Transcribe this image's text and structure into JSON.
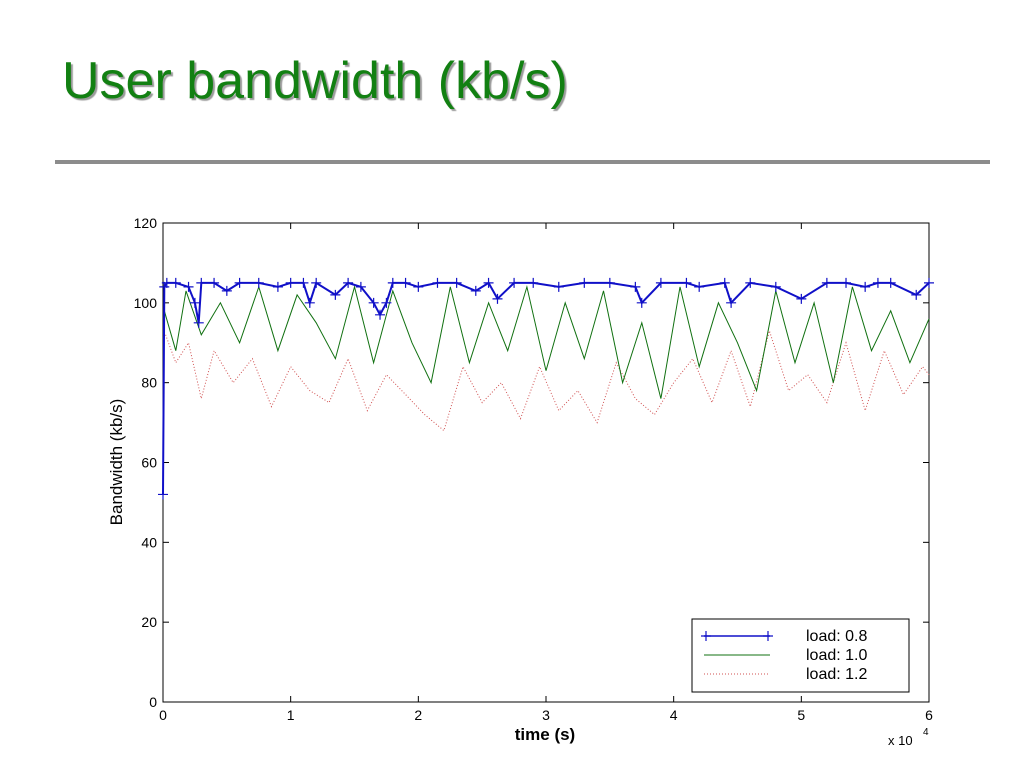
{
  "slide": {
    "title": "User bandwidth (kb/s)"
  },
  "colors": {
    "title": "#128012",
    "rule": "#8c8c8c",
    "series_load_08": "#1010c8",
    "series_load_10": "#107010",
    "series_load_12": "#d05050"
  },
  "chart_data": {
    "type": "line",
    "title": "",
    "xlabel": "time (s)",
    "ylabel": "Bandwidth (kb/s)",
    "x_multiplier": "x 10",
    "x_multiplier_exp": "4",
    "xlim": [
      0,
      6
    ],
    "ylim": [
      0,
      120
    ],
    "x_ticks": [
      0,
      1,
      2,
      3,
      4,
      5,
      6
    ],
    "y_ticks": [
      0,
      20,
      40,
      60,
      80,
      100,
      120
    ],
    "grid": false,
    "legend_position": "bottom-right",
    "series": [
      {
        "name": "load: 0.8",
        "style": "solid-plus-markers",
        "x": [
          0,
          0.01,
          0.03,
          0.1,
          0.2,
          0.25,
          0.28,
          0.3,
          0.4,
          0.5,
          0.6,
          0.75,
          0.9,
          1.0,
          1.1,
          1.15,
          1.2,
          1.35,
          1.45,
          1.55,
          1.65,
          1.7,
          1.75,
          1.8,
          1.9,
          2.0,
          2.15,
          2.3,
          2.45,
          2.55,
          2.62,
          2.75,
          2.9,
          3.1,
          3.3,
          3.5,
          3.7,
          3.75,
          3.9,
          4.1,
          4.2,
          4.4,
          4.45,
          4.6,
          4.8,
          5.0,
          5.2,
          5.35,
          5.5,
          5.6,
          5.7,
          5.9,
          6.0
        ],
        "y": [
          52,
          104,
          105,
          105,
          104,
          100,
          95,
          105,
          105,
          103,
          105,
          105,
          104,
          105,
          105,
          100,
          105,
          102,
          105,
          104,
          100,
          97,
          100,
          105,
          105,
          104,
          105,
          105,
          103,
          105,
          101,
          105,
          105,
          104,
          105,
          105,
          104,
          100,
          105,
          105,
          104,
          105,
          100,
          105,
          104,
          101,
          105,
          105,
          104,
          105,
          105,
          102,
          105
        ]
      },
      {
        "name": "load: 1.0",
        "style": "solid",
        "x": [
          0.01,
          0.1,
          0.18,
          0.3,
          0.45,
          0.6,
          0.75,
          0.9,
          1.05,
          1.2,
          1.35,
          1.5,
          1.65,
          1.8,
          1.95,
          2.1,
          2.25,
          2.4,
          2.55,
          2.7,
          2.85,
          3.0,
          3.15,
          3.3,
          3.45,
          3.6,
          3.75,
          3.9,
          4.05,
          4.2,
          4.35,
          4.5,
          4.65,
          4.8,
          4.95,
          5.1,
          5.25,
          5.4,
          5.55,
          5.7,
          5.85,
          6.0
        ],
        "y": [
          98,
          88,
          103,
          92,
          100,
          90,
          104,
          88,
          102,
          95,
          86,
          104,
          85,
          103,
          90,
          80,
          104,
          85,
          100,
          88,
          104,
          83,
          100,
          86,
          103,
          80,
          95,
          76,
          104,
          84,
          100,
          90,
          78,
          103,
          85,
          100,
          80,
          104,
          88,
          98,
          85,
          96
        ]
      },
      {
        "name": "load: 1.2",
        "style": "dotted",
        "x": [
          0.02,
          0.1,
          0.2,
          0.3,
          0.4,
          0.55,
          0.7,
          0.85,
          1.0,
          1.15,
          1.3,
          1.45,
          1.6,
          1.75,
          1.9,
          2.05,
          2.2,
          2.35,
          2.5,
          2.65,
          2.8,
          2.95,
          3.1,
          3.25,
          3.4,
          3.55,
          3.7,
          3.85,
          4.0,
          4.15,
          4.3,
          4.45,
          4.6,
          4.75,
          4.9,
          5.05,
          5.2,
          5.35,
          5.5,
          5.65,
          5.8,
          5.95,
          6.0
        ],
        "y": [
          92,
          85,
          90,
          76,
          88,
          80,
          86,
          74,
          84,
          78,
          75,
          86,
          73,
          82,
          77,
          72,
          68,
          84,
          75,
          80,
          71,
          84,
          73,
          78,
          70,
          85,
          76,
          72,
          80,
          86,
          75,
          88,
          74,
          93,
          78,
          82,
          75,
          90,
          73,
          88,
          77,
          84,
          82
        ]
      }
    ]
  }
}
